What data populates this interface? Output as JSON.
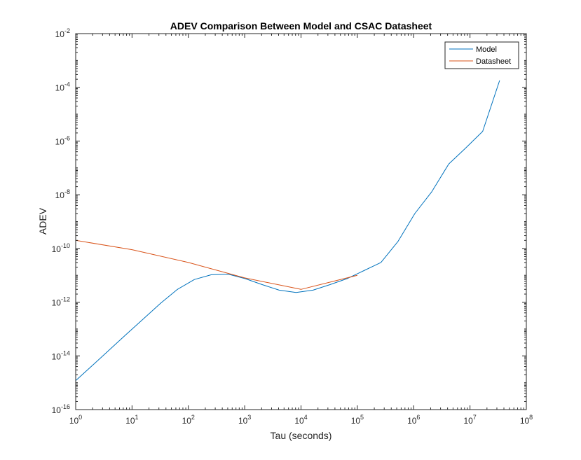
{
  "chart_data": {
    "type": "line",
    "title": "ADEV Comparison Between Model and CSAC Datasheet",
    "xlabel": "Tau (seconds)",
    "ylabel": "ADEV",
    "xscale": "log",
    "yscale": "log",
    "xlim": [
      1,
      100000000
    ],
    "ylim": [
      1e-16,
      0.01
    ],
    "grid": false,
    "legend_position": "top-right",
    "x_ticks": [
      {
        "base": "10",
        "exp": "0",
        "value": 1
      },
      {
        "base": "10",
        "exp": "1",
        "value": 10
      },
      {
        "base": "10",
        "exp": "2",
        "value": 100
      },
      {
        "base": "10",
        "exp": "3",
        "value": 1000
      },
      {
        "base": "10",
        "exp": "4",
        "value": 10000
      },
      {
        "base": "10",
        "exp": "5",
        "value": 100000
      },
      {
        "base": "10",
        "exp": "6",
        "value": 1000000
      },
      {
        "base": "10",
        "exp": "7",
        "value": 10000000
      },
      {
        "base": "10",
        "exp": "8",
        "value": 100000000
      }
    ],
    "y_ticks": [
      {
        "base": "10",
        "exp": "-16",
        "value": 1e-16
      },
      {
        "base": "10",
        "exp": "-14",
        "value": 1e-14
      },
      {
        "base": "10",
        "exp": "-12",
        "value": 1e-12
      },
      {
        "base": "10",
        "exp": "-10",
        "value": 1e-10
      },
      {
        "base": "10",
        "exp": "-8",
        "value": 1e-08
      },
      {
        "base": "10",
        "exp": "-6",
        "value": 1e-06
      },
      {
        "base": "10",
        "exp": "-4",
        "value": 0.0001
      },
      {
        "base": "10",
        "exp": "-2",
        "value": 0.01
      }
    ],
    "series": [
      {
        "name": "Model",
        "color": "#0072BD",
        "points": [
          [
            1,
            1.2e-15
          ],
          [
            2,
            4.5e-15
          ],
          [
            4,
            1.7e-14
          ],
          [
            8,
            6.5e-14
          ],
          [
            16,
            2.4e-13
          ],
          [
            32,
            9e-13
          ],
          [
            64,
            3e-12
          ],
          [
            128,
            7e-12
          ],
          [
            256,
            1.05e-11
          ],
          [
            512,
            1.1e-11
          ],
          [
            1024,
            7.5e-12
          ],
          [
            2048,
            4.5e-12
          ],
          [
            4096,
            2.8e-12
          ],
          [
            8192,
            2.3e-12
          ],
          [
            16384,
            2.8e-12
          ],
          [
            32768,
            4.5e-12
          ],
          [
            65536,
            7.5e-12
          ],
          [
            131072,
            1.5e-11
          ],
          [
            262144,
            3e-11
          ],
          [
            524288,
            1.8e-10
          ],
          [
            1048576,
            2e-09
          ],
          [
            2097152,
            1.3e-08
          ],
          [
            4194304,
            1.4e-07
          ],
          [
            8388608,
            5.5e-07
          ],
          [
            16777216,
            2.3e-06
          ],
          [
            33554432,
            0.00018
          ]
        ]
      },
      {
        "name": "Datasheet",
        "color": "#D95319",
        "points": [
          [
            1,
            2e-10
          ],
          [
            10,
            9e-11
          ],
          [
            100,
            3e-11
          ],
          [
            1000,
            8e-12
          ],
          [
            10000,
            3e-12
          ],
          [
            100000,
            1e-11
          ]
        ]
      }
    ]
  }
}
